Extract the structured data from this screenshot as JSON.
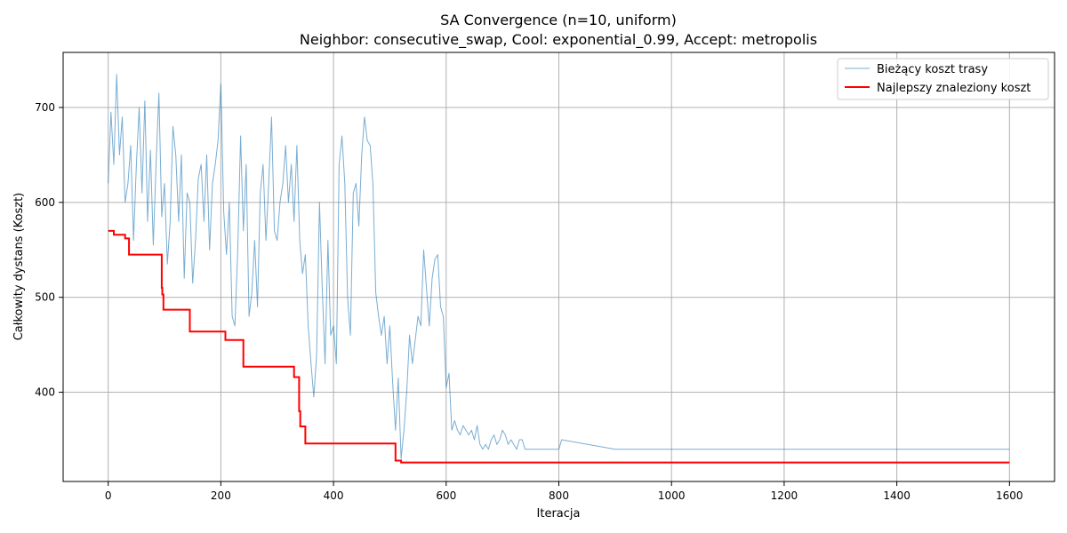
{
  "chart_data": {
    "type": "line",
    "title": "SA Convergence (n=10, uniform)",
    "subtitle": "Neighbor: consecutive_swap, Cool: exponential_0.99, Accept: metropolis",
    "xlabel": "Iteracja",
    "ylabel": "Całkowity dystans (Koszt)",
    "xlim": [
      -80,
      1680
    ],
    "ylim": [
      306,
      758
    ],
    "xticks": [
      0,
      200,
      400,
      600,
      800,
      1000,
      1200,
      1400,
      1600
    ],
    "xtick_labels": [
      "0",
      "200",
      "400",
      "600",
      "800",
      "1000",
      "1200",
      "1400",
      "1600"
    ],
    "yticks": [
      400,
      500,
      600,
      700
    ],
    "ytick_labels": [
      "400",
      "500",
      "600",
      "700"
    ],
    "grid": true,
    "legend_position": "top-right",
    "series": [
      {
        "name": "Bieżący koszt trasy",
        "color": "#1f77b4",
        "style": "thin-noisy",
        "x": [
          0,
          5,
          10,
          15,
          20,
          25,
          30,
          35,
          40,
          45,
          50,
          55,
          60,
          65,
          70,
          75,
          80,
          85,
          90,
          95,
          100,
          105,
          110,
          115,
          120,
          125,
          130,
          135,
          140,
          145,
          150,
          155,
          160,
          165,
          170,
          175,
          180,
          185,
          190,
          195,
          200,
          205,
          210,
          215,
          220,
          225,
          230,
          235,
          240,
          245,
          250,
          255,
          260,
          265,
          270,
          275,
          280,
          285,
          290,
          295,
          300,
          305,
          310,
          315,
          320,
          325,
          330,
          335,
          340,
          345,
          350,
          355,
          360,
          365,
          370,
          375,
          380,
          385,
          390,
          395,
          400,
          405,
          410,
          415,
          420,
          425,
          430,
          435,
          440,
          445,
          450,
          455,
          460,
          465,
          470,
          475,
          480,
          485,
          490,
          495,
          500,
          505,
          510,
          515,
          520,
          525,
          530,
          535,
          540,
          545,
          550,
          555,
          560,
          565,
          570,
          575,
          580,
          585,
          590,
          595,
          600,
          605,
          610,
          615,
          620,
          625,
          630,
          635,
          640,
          645,
          650,
          655,
          660,
          665,
          670,
          675,
          680,
          685,
          690,
          695,
          700,
          705,
          710,
          715,
          720,
          725,
          730,
          735,
          740,
          745,
          750,
          800,
          805,
          900,
          1000,
          1100,
          1200,
          1300,
          1400,
          1500,
          1600
        ],
        "y": [
          620,
          695,
          640,
          735,
          650,
          690,
          600,
          620,
          660,
          560,
          640,
          700,
          610,
          707,
          580,
          655,
          555,
          640,
          715,
          585,
          620,
          535,
          580,
          680,
          650,
          580,
          650,
          520,
          610,
          600,
          515,
          560,
          625,
          640,
          580,
          650,
          550,
          620,
          640,
          665,
          725,
          590,
          545,
          600,
          480,
          470,
          550,
          670,
          570,
          640,
          480,
          505,
          560,
          490,
          610,
          640,
          560,
          620,
          690,
          570,
          560,
          600,
          620,
          660,
          600,
          640,
          580,
          660,
          560,
          525,
          545,
          470,
          430,
          395,
          440,
          600,
          510,
          430,
          560,
          460,
          470,
          430,
          640,
          670,
          620,
          500,
          460,
          610,
          620,
          575,
          650,
          690,
          665,
          660,
          620,
          505,
          480,
          460,
          480,
          430,
          470,
          410,
          360,
          415,
          330,
          360,
          400,
          460,
          430,
          455,
          480,
          470,
          550,
          510,
          470,
          520,
          540,
          545,
          490,
          480,
          405,
          420,
          360,
          370,
          360,
          355,
          365,
          360,
          355,
          360,
          350,
          365,
          345,
          340,
          345,
          340,
          350,
          355,
          345,
          350,
          360,
          355,
          345,
          350,
          345,
          340,
          350,
          350,
          340,
          340,
          340,
          340,
          350,
          340,
          340,
          340,
          340,
          340,
          340,
          340,
          340
        ]
      },
      {
        "name": "Najlepszy znaleziony koszt",
        "color": "#ff0000",
        "style": "step",
        "x": [
          0,
          10,
          30,
          37,
          95,
          96,
          98,
          145,
          208,
          240,
          330,
          339,
          341,
          343,
          350,
          510,
          513,
          520,
          1600
        ],
        "y": [
          570,
          566,
          562,
          545,
          510,
          503,
          487,
          464,
          455,
          427,
          416,
          380,
          364,
          364,
          346,
          328,
          328,
          326,
          326
        ]
      }
    ]
  }
}
